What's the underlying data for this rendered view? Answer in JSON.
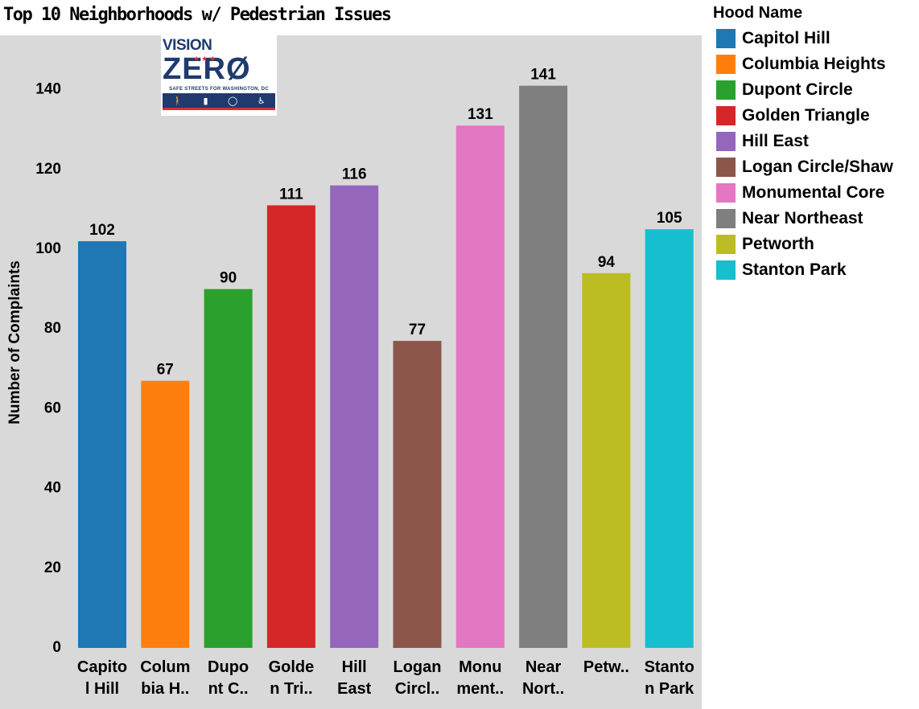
{
  "chart_data": {
    "type": "bar",
    "title": "Top 10 Neighborhoods w/ Pedestrian Issues",
    "ylabel": "Number of Complaints",
    "xlabel": "",
    "ylim": [
      0,
      150
    ],
    "yticks": [
      0,
      20,
      40,
      60,
      80,
      100,
      120,
      140
    ],
    "grid": false,
    "legend_position": "right",
    "legend_title": "Hood Name",
    "categories": [
      "Capitol Hill",
      "Columbia Heights",
      "Dupont Circle",
      "Golden Triangle",
      "Hill East",
      "Logan Circle/Shaw",
      "Monumental Core",
      "Near Northeast",
      "Petworth",
      "Stanton Park"
    ],
    "tick_labels": [
      [
        "Capito",
        "l Hill"
      ],
      [
        "Colum",
        "bia H.."
      ],
      [
        "Dupo",
        "nt C.."
      ],
      [
        "Golde",
        "n Tri.."
      ],
      [
        "Hill",
        "East"
      ],
      [
        "Logan",
        "Circl.."
      ],
      [
        "Monu",
        "ment.."
      ],
      [
        "Near",
        "Nort.."
      ],
      [
        "Petw..",
        ""
      ],
      [
        "Stanto",
        "n Park"
      ]
    ],
    "values": [
      102,
      67,
      90,
      111,
      116,
      77,
      131,
      141,
      94,
      105
    ],
    "colors": [
      "#1f77b4",
      "#ff7f0e",
      "#2ca02c",
      "#d62728",
      "#9467bd",
      "#8c564b",
      "#e377c2",
      "#7f7f7f",
      "#bcbd22",
      "#17becf"
    ]
  },
  "logo": {
    "vision": "VISION",
    "zero": "ZERØ",
    "stars": "★★★",
    "tagline": "SAFE STREETS FOR WASHINGTON, DC",
    "icons": [
      "walk-icon",
      "car-icon",
      "bike-icon",
      "wheelchair-icon"
    ]
  }
}
